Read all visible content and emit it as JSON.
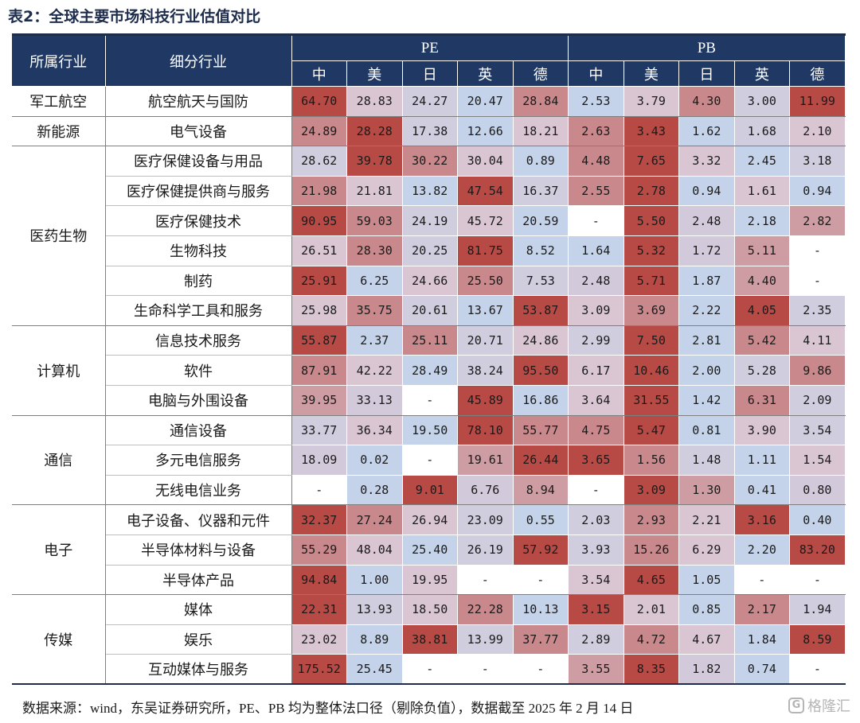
{
  "title": "表2：全球主要市场科技行业估值对比",
  "header": {
    "sector_label": "所属行业",
    "sub_label": "细分行业",
    "pe_label": "PE",
    "pb_label": "PB",
    "markets": [
      "中",
      "美",
      "日",
      "英",
      "德"
    ]
  },
  "colors": {
    "header_bg": "#1f3864",
    "scale_low": "#c5d3ea",
    "scale_mid": "#d9c6d2",
    "scale_high": "#b84a45"
  },
  "groups": [
    {
      "sector": "军工航空",
      "rows": [
        {
          "name": "航空航天与国防",
          "pe": [
            "64.70",
            "28.83",
            "24.27",
            "20.47",
            "28.84"
          ],
          "pb": [
            "2.53",
            "3.79",
            "4.30",
            "3.00",
            "11.99"
          ]
        }
      ]
    },
    {
      "sector": "新能源",
      "rows": [
        {
          "name": "电气设备",
          "pe": [
            "24.89",
            "28.28",
            "17.38",
            "12.66",
            "18.21"
          ],
          "pb": [
            "2.63",
            "3.43",
            "1.62",
            "1.68",
            "2.10"
          ]
        }
      ]
    },
    {
      "sector": "医药生物",
      "rows": [
        {
          "name": "医疗保健设备与用品",
          "pe": [
            "28.62",
            "39.78",
            "30.22",
            "30.04",
            "0.89"
          ],
          "pb": [
            "4.48",
            "7.65",
            "3.32",
            "2.45",
            "3.18"
          ]
        },
        {
          "name": "医疗保健提供商与服务",
          "pe": [
            "21.98",
            "21.81",
            "13.82",
            "47.54",
            "16.37"
          ],
          "pb": [
            "2.55",
            "2.78",
            "0.94",
            "1.61",
            "0.94"
          ]
        },
        {
          "name": "医疗保健技术",
          "pe": [
            "90.95",
            "59.03",
            "24.19",
            "45.72",
            "20.59"
          ],
          "pb": [
            "-",
            "5.50",
            "2.48",
            "2.18",
            "2.82"
          ]
        },
        {
          "name": "生物科技",
          "pe": [
            "26.51",
            "28.30",
            "20.25",
            "81.75",
            "8.52"
          ],
          "pb": [
            "1.64",
            "5.32",
            "1.72",
            "5.11",
            "-"
          ]
        },
        {
          "name": "制药",
          "pe": [
            "25.91",
            "6.25",
            "24.66",
            "25.50",
            "7.53"
          ],
          "pb": [
            "2.48",
            "5.71",
            "1.87",
            "4.40",
            "-"
          ]
        },
        {
          "name": "生命科学工具和服务",
          "pe": [
            "25.98",
            "35.75",
            "20.61",
            "13.67",
            "53.87"
          ],
          "pb": [
            "3.09",
            "3.69",
            "2.22",
            "4.05",
            "2.35"
          ]
        }
      ]
    },
    {
      "sector": "计算机",
      "rows": [
        {
          "name": "信息技术服务",
          "pe": [
            "55.87",
            "2.37",
            "25.11",
            "20.71",
            "24.86"
          ],
          "pb": [
            "2.99",
            "7.50",
            "2.81",
            "5.42",
            "4.11"
          ]
        },
        {
          "name": "软件",
          "pe": [
            "87.91",
            "42.22",
            "28.49",
            "38.24",
            "95.50"
          ],
          "pb": [
            "6.17",
            "10.46",
            "2.00",
            "5.28",
            "9.86"
          ]
        },
        {
          "name": "电脑与外围设备",
          "pe": [
            "39.95",
            "33.13",
            "-",
            "45.89",
            "16.86"
          ],
          "pb": [
            "3.64",
            "31.55",
            "1.42",
            "6.31",
            "2.09"
          ]
        }
      ]
    },
    {
      "sector": "通信",
      "rows": [
        {
          "name": "通信设备",
          "pe": [
            "33.77",
            "36.34",
            "19.50",
            "78.10",
            "55.77"
          ],
          "pb": [
            "4.75",
            "5.47",
            "0.81",
            "3.90",
            "3.54"
          ]
        },
        {
          "name": "多元电信服务",
          "pe": [
            "18.09",
            "0.02",
            "-",
            "19.61",
            "26.44"
          ],
          "pb": [
            "3.65",
            "1.56",
            "1.48",
            "1.11",
            "1.54"
          ]
        },
        {
          "name": "无线电信业务",
          "pe": [
            "-",
            "0.28",
            "9.01",
            "6.76",
            "8.94"
          ],
          "pb": [
            "-",
            "3.09",
            "1.30",
            "0.41",
            "0.80"
          ]
        }
      ]
    },
    {
      "sector": "电子",
      "rows": [
        {
          "name": "电子设备、仪器和元件",
          "pe": [
            "32.37",
            "27.24",
            "26.94",
            "23.09",
            "0.55"
          ],
          "pb": [
            "2.03",
            "2.93",
            "2.21",
            "3.16",
            "0.40"
          ]
        },
        {
          "name": "半导体材料与设备",
          "pe": [
            "55.29",
            "48.04",
            "25.40",
            "26.19",
            "57.92"
          ],
          "pb": [
            "3.93",
            "15.26",
            "6.29",
            "2.20",
            "83.20"
          ]
        },
        {
          "name": "半导体产品",
          "pe": [
            "94.84",
            "1.00",
            "19.95",
            "-",
            "-"
          ],
          "pb": [
            "3.54",
            "4.65",
            "1.05",
            "-",
            "-"
          ]
        }
      ]
    },
    {
      "sector": "传媒",
      "rows": [
        {
          "name": "媒体",
          "pe": [
            "22.31",
            "13.93",
            "18.50",
            "22.28",
            "10.13"
          ],
          "pb": [
            "3.15",
            "2.01",
            "0.85",
            "2.17",
            "1.94"
          ]
        },
        {
          "name": "娱乐",
          "pe": [
            "23.02",
            "8.89",
            "38.81",
            "13.99",
            "37.77"
          ],
          "pb": [
            "2.89",
            "4.72",
            "4.67",
            "1.84",
            "8.59"
          ]
        },
        {
          "name": "互动媒体与服务",
          "pe": [
            "175.52",
            "25.45",
            "-",
            "-",
            "-"
          ],
          "pb": [
            "3.55",
            "8.35",
            "1.82",
            "0.74",
            "-"
          ]
        }
      ]
    }
  ],
  "footer": "数据来源：wind，东吴证券研究所，PE、PB 均为整体法口径（剔除负值），数据截至 2025 年 2 月 14 日",
  "watermark": {
    "text": "格隆汇",
    "icon": "gelonghui-logo-icon"
  }
}
